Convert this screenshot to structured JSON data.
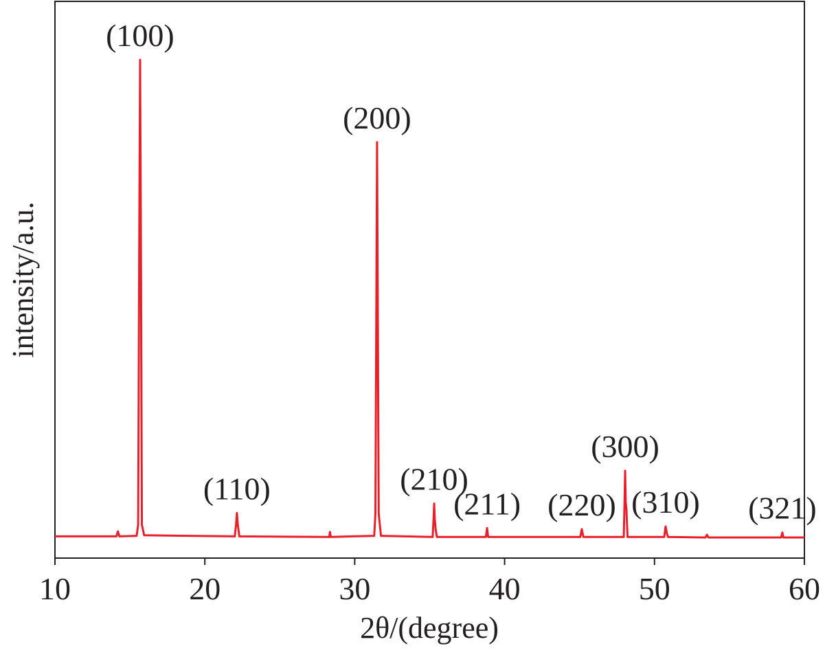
{
  "chart_data": {
    "type": "line",
    "x_label": "2θ/(degree)",
    "y_label": "intensity/a.u.",
    "xlim": [
      10,
      60
    ],
    "xticks": [
      10,
      20,
      30,
      40,
      50,
      60
    ],
    "ylim": [
      0,
      100
    ],
    "series": [
      {
        "color": "#e8202a",
        "x": [
          10,
          14.1,
          14.2,
          14.3,
          15.45,
          15.55,
          15.63,
          15.68,
          15.73,
          15.8,
          15.95,
          22.0,
          22.08,
          22.14,
          22.2,
          22.3,
          28.3,
          28.35,
          28.4,
          31.3,
          31.38,
          31.45,
          31.49,
          31.53,
          31.6,
          31.75,
          35.2,
          35.26,
          35.3,
          35.34,
          35.4,
          35.48,
          38.75,
          38.83,
          38.9,
          45.05,
          45.15,
          45.25,
          47.95,
          48.0,
          48.04,
          48.08,
          48.13,
          48.2,
          50.65,
          50.74,
          50.82,
          50.9,
          53.4,
          53.5,
          53.6,
          58.45,
          58.53,
          58.6,
          60
        ],
        "values": [
          3.9,
          3.9,
          4.8,
          3.9,
          4.0,
          6,
          60,
          89.5,
          60,
          6,
          4.1,
          3.9,
          6,
          8.1,
          6,
          3.9,
          3.8,
          4.7,
          3.8,
          4.0,
          8,
          50,
          74.7,
          50,
          8,
          4.0,
          3.8,
          7,
          9.8,
          7,
          5.2,
          3.8,
          3.8,
          5.4,
          3.8,
          3.8,
          5.2,
          3.8,
          3.8,
          10,
          15.7,
          10,
          8.7,
          3.8,
          3.8,
          5.7,
          4.5,
          3.8,
          3.7,
          4.2,
          3.7,
          3.7,
          4.6,
          3.7,
          3.7
        ]
      }
    ],
    "annotations": [
      {
        "text": "(100)",
        "x": 15.68,
        "y": 89.5
      },
      {
        "text": "(110)",
        "x": 22.14,
        "y": 8.1
      },
      {
        "text": "(200)",
        "x": 31.49,
        "y": 74.7
      },
      {
        "text": "(210)",
        "x": 35.3,
        "y": 9.8
      },
      {
        "text": "(211)",
        "x": 38.83,
        "y": 5.4
      },
      {
        "text": "(220)",
        "x": 45.15,
        "y": 5.2
      },
      {
        "text": "(300)",
        "x": 48.04,
        "y": 15.7
      },
      {
        "text": "(310)",
        "x": 50.74,
        "y": 5.7
      },
      {
        "text": "(321)",
        "x": 58.53,
        "y": 4.6
      }
    ]
  }
}
